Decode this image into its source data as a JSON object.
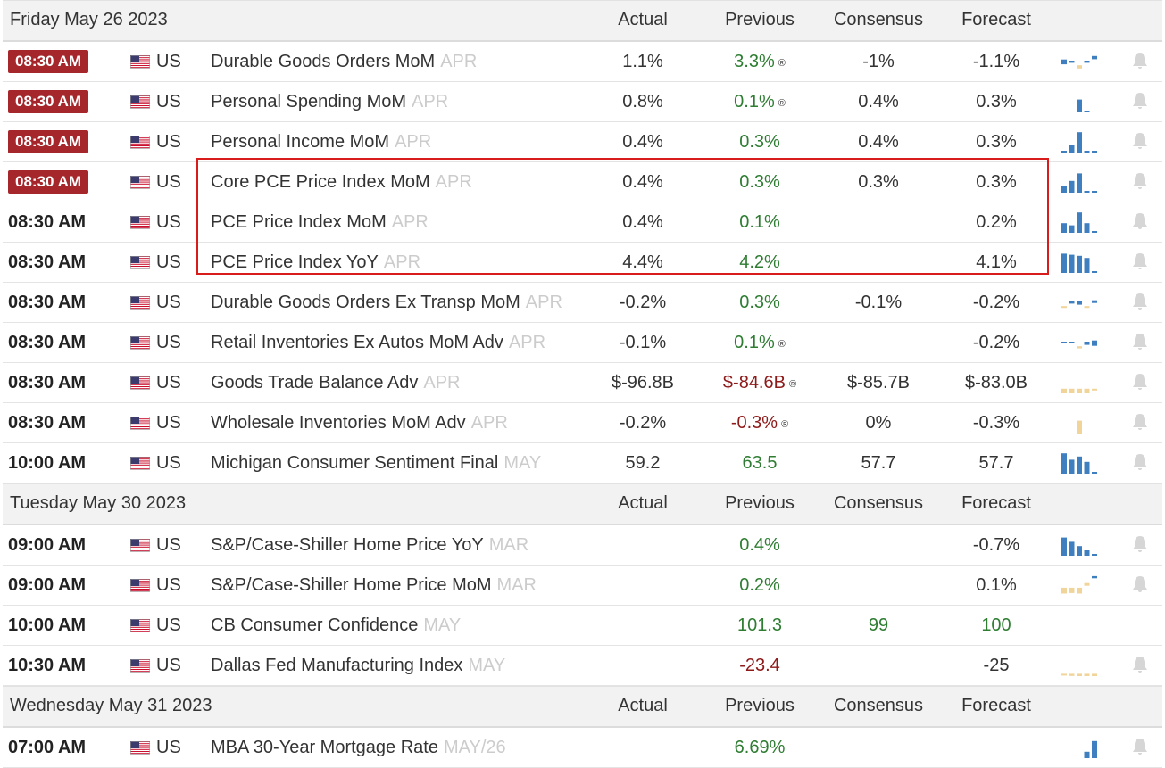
{
  "colors": {
    "highlight": "#a5262b",
    "positive": "#2e7d32",
    "negative": "#8e1a1a",
    "spark_blue": "#3f7fbf",
    "spark_tan": "#f1d49a",
    "box": "#d81b1b"
  },
  "columns": {
    "actual": "Actual",
    "previous": "Previous",
    "consensus": "Consensus",
    "forecast": "Forecast"
  },
  "groups": [
    {
      "date": "Friday May 26 2023",
      "rows": [
        {
          "time": "08:30 AM",
          "hi": true,
          "country": "US",
          "event": "Durable Goods Orders MoM",
          "period": "APR",
          "actual": "1.1%",
          "previous": "3.3%",
          "prev_color": "g",
          "revised": true,
          "consensus": "-1%",
          "forecast": "-1.1%",
          "spark": [
            {
              "h": 0.45,
              "c": "b",
              "o": 0.55
            },
            {
              "h": 0.2,
              "c": "b",
              "o": 0.5
            },
            {
              "h": 0.3,
              "c": "t",
              "o": 0.3
            },
            {
              "h": 0.2,
              "c": "b",
              "o": 0.5
            },
            {
              "h": 0.3,
              "c": "b",
              "o": 0.7
            }
          ],
          "bell": true
        },
        {
          "time": "08:30 AM",
          "hi": true,
          "country": "US",
          "event": "Personal Spending MoM",
          "period": "APR",
          "actual": "0.8%",
          "previous": "0.1%",
          "prev_color": "g",
          "revised": true,
          "consensus": "0.4%",
          "forecast": "0.3%",
          "spark": [
            {
              "h": 0,
              "c": "b",
              "o": 0
            },
            {
              "h": 0,
              "c": "b",
              "o": 0
            },
            {
              "h": 0.6,
              "c": "b",
              "o": 0
            },
            {
              "h": 0.08,
              "c": "b",
              "o": 0
            },
            {
              "h": 0,
              "c": "b",
              "o": 0
            }
          ],
          "bell": true
        },
        {
          "time": "08:30 AM",
          "hi": true,
          "country": "US",
          "event": "Personal Income MoM",
          "period": "APR",
          "actual": "0.4%",
          "previous": "0.3%",
          "prev_color": "g",
          "revised": false,
          "consensus": "0.4%",
          "forecast": "0.3%",
          "spark": [
            {
              "h": 0.08,
              "c": "b",
              "o": 0
            },
            {
              "h": 0.35,
              "c": "b",
              "o": 0
            },
            {
              "h": 0.95,
              "c": "b",
              "o": 0
            },
            {
              "h": 0.08,
              "c": "b",
              "o": 0
            },
            {
              "h": 0.08,
              "c": "b",
              "o": 0
            }
          ],
          "bell": true
        },
        {
          "time": "08:30 AM",
          "hi": true,
          "country": "US",
          "event": "Core PCE Price Index MoM",
          "period": "APR",
          "actual": "0.4%",
          "previous": "0.3%",
          "prev_color": "g",
          "revised": false,
          "consensus": "0.3%",
          "forecast": "0.3%",
          "spark": [
            {
              "h": 0.3,
              "c": "b",
              "o": 0
            },
            {
              "h": 0.55,
              "c": "b",
              "o": 0
            },
            {
              "h": 0.9,
              "c": "b",
              "o": 0
            },
            {
              "h": 0.08,
              "c": "b",
              "o": 0
            },
            {
              "h": 0.08,
              "c": "b",
              "o": 0
            }
          ],
          "bell": true
        },
        {
          "time": "08:30 AM",
          "hi": false,
          "country": "US",
          "event": "PCE Price Index MoM",
          "period": "APR",
          "actual": "0.4%",
          "previous": "0.1%",
          "prev_color": "g",
          "revised": false,
          "consensus": "",
          "forecast": "0.2%",
          "spark": [
            {
              "h": 0.45,
              "c": "b",
              "o": 0
            },
            {
              "h": 0.35,
              "c": "b",
              "o": 0
            },
            {
              "h": 0.95,
              "c": "b",
              "o": 0
            },
            {
              "h": 0.45,
              "c": "b",
              "o": 0
            },
            {
              "h": 0.08,
              "c": "b",
              "o": 0
            }
          ],
          "bell": true
        },
        {
          "time": "08:30 AM",
          "hi": false,
          "country": "US",
          "event": "PCE Price Index YoY",
          "period": "APR",
          "actual": "4.4%",
          "previous": "4.2%",
          "prev_color": "g",
          "revised": false,
          "consensus": "",
          "forecast": "4.1%",
          "spark": [
            {
              "h": 0.9,
              "c": "b",
              "o": 0
            },
            {
              "h": 0.85,
              "c": "b",
              "o": 0
            },
            {
              "h": 0.8,
              "c": "b",
              "o": 0
            },
            {
              "h": 0.7,
              "c": "b",
              "o": 0
            },
            {
              "h": 0.08,
              "c": "b",
              "o": 0
            }
          ],
          "bell": true
        },
        {
          "time": "08:30 AM",
          "hi": false,
          "country": "US",
          "event": "Durable Goods Orders Ex Transp MoM",
          "period": "APR",
          "actual": "-0.2%",
          "previous": "0.3%",
          "prev_color": "g",
          "revised": false,
          "consensus": "-0.1%",
          "forecast": "-0.2%",
          "spark": [
            {
              "h": 0.15,
              "c": "t",
              "o": 0.3
            },
            {
              "h": 0.2,
              "c": "b",
              "o": 0.5
            },
            {
              "h": 0.3,
              "c": "b",
              "o": 0.5
            },
            {
              "h": 0.15,
              "c": "t",
              "o": 0.3
            },
            {
              "h": 0.25,
              "c": "b",
              "o": 0.55
            }
          ],
          "bell": true
        },
        {
          "time": "08:30 AM",
          "hi": false,
          "country": "US",
          "event": "Retail Inventories Ex Autos MoM Adv",
          "period": "APR",
          "actual": "-0.1%",
          "previous": "0.1%",
          "prev_color": "g",
          "revised": true,
          "consensus": "",
          "forecast": "-0.2%",
          "spark": [
            {
              "h": 0.1,
              "c": "b",
              "o": 0.5
            },
            {
              "h": 0.1,
              "c": "b",
              "o": 0.5
            },
            {
              "h": 0.2,
              "c": "t",
              "o": 0.3
            },
            {
              "h": 0.3,
              "c": "b",
              "o": 0.5
            },
            {
              "h": 0.5,
              "c": "b",
              "o": 0.55
            }
          ],
          "bell": true
        },
        {
          "time": "08:30 AM",
          "hi": false,
          "country": "US",
          "event": "Goods Trade Balance Adv",
          "period": "APR",
          "actual": "$-96.8B",
          "previous": "$-84.6B",
          "prev_color": "r",
          "revised": true,
          "consensus": "$-85.7B",
          "forecast": "$-83.0B",
          "spark": [
            {
              "h": 0.8,
              "c": "t",
              "o": 0.2
            },
            {
              "h": 0.7,
              "c": "t",
              "o": 0.2
            },
            {
              "h": 0.9,
              "c": "t",
              "o": 0.2
            },
            {
              "h": 0.8,
              "c": "t",
              "o": 0.2
            },
            {
              "h": 0.1,
              "c": "t",
              "o": 0.2
            }
          ],
          "bell": true
        },
        {
          "time": "08:30 AM",
          "hi": false,
          "country": "US",
          "event": "Wholesale Inventories MoM Adv",
          "period": "APR",
          "actual": "-0.2%",
          "previous": "-0.3%",
          "prev_color": "r",
          "revised": true,
          "consensus": "0%",
          "forecast": "-0.3%",
          "spark": [
            {
              "h": 0,
              "c": "t",
              "o": 0
            },
            {
              "h": 0,
              "c": "t",
              "o": 0
            },
            {
              "h": 0.6,
              "c": "t",
              "o": 0
            },
            {
              "h": 0,
              "c": "t",
              "o": 0
            },
            {
              "h": 0,
              "c": "t",
              "o": 0
            }
          ],
          "bell": true
        },
        {
          "time": "10:00 AM",
          "hi": false,
          "country": "US",
          "event": "Michigan Consumer Sentiment Final",
          "period": "MAY",
          "actual": "59.2",
          "previous": "63.5",
          "prev_color": "g",
          "revised": false,
          "consensus": "57.7",
          "forecast": "57.7",
          "spark": [
            {
              "h": 0.95,
              "c": "b",
              "o": 0
            },
            {
              "h": 0.65,
              "c": "b",
              "o": 0
            },
            {
              "h": 0.8,
              "c": "b",
              "o": 0
            },
            {
              "h": 0.55,
              "c": "b",
              "o": 0
            },
            {
              "h": 0.08,
              "c": "b",
              "o": 0
            }
          ],
          "bell": true
        }
      ]
    },
    {
      "date": "Tuesday May 30 2023",
      "rows": [
        {
          "time": "09:00 AM",
          "hi": false,
          "country": "US",
          "event": "S&P/Case-Shiller Home Price YoY",
          "period": "MAR",
          "actual": "",
          "previous": "0.4%",
          "prev_color": "g",
          "revised": false,
          "consensus": "",
          "forecast": "-0.7%",
          "spark": [
            {
              "h": 0.85,
              "c": "b",
              "o": 0
            },
            {
              "h": 0.65,
              "c": "b",
              "o": 0
            },
            {
              "h": 0.45,
              "c": "b",
              "o": 0
            },
            {
              "h": 0.25,
              "c": "b",
              "o": 0
            },
            {
              "h": 0.08,
              "c": "b",
              "o": 0
            }
          ],
          "bell": true
        },
        {
          "time": "09:00 AM",
          "hi": false,
          "country": "US",
          "event": "S&P/Case-Shiller Home Price MoM",
          "period": "MAR",
          "actual": "",
          "previous": "0.2%",
          "prev_color": "g",
          "revised": false,
          "consensus": "",
          "forecast": "0.1%",
          "spark": [
            {
              "h": 0.55,
              "c": "t",
              "o": 0.35
            },
            {
              "h": 0.5,
              "c": "t",
              "o": 0.35
            },
            {
              "h": 0.55,
              "c": "t",
              "o": 0.35
            },
            {
              "h": 0.25,
              "c": "t",
              "o": 0.55
            },
            {
              "h": 0.2,
              "c": "b",
              "o": 0.85
            }
          ],
          "bell": true
        },
        {
          "time": "10:00 AM",
          "hi": false,
          "country": "US",
          "event": "CB Consumer Confidence",
          "period": "MAY",
          "actual": "",
          "previous": "101.3",
          "prev_color": "g",
          "revised": false,
          "consensus": "99",
          "forecast": "100",
          "fcst_color": "g",
          "cons_color": "g",
          "spark": [],
          "bell": false
        },
        {
          "time": "10:30 AM",
          "hi": false,
          "country": "US",
          "event": "Dallas Fed Manufacturing Index",
          "period": "MAY",
          "actual": "",
          "previous": "-23.4",
          "prev_color": "r",
          "revised": false,
          "consensus": "",
          "forecast": "-25",
          "spark": [
            {
              "h": 0.08,
              "c": "t",
              "o": 0.1
            },
            {
              "h": 0.2,
              "c": "t",
              "o": 0.1
            },
            {
              "h": 0.5,
              "c": "t",
              "o": 0.1
            },
            {
              "h": 0.7,
              "c": "t",
              "o": 0.1
            },
            {
              "h": 0.95,
              "c": "t",
              "o": 0.1
            }
          ],
          "bell": true
        }
      ]
    },
    {
      "date": "Wednesday May 31 2023",
      "rows": [
        {
          "time": "07:00 AM",
          "hi": false,
          "country": "US",
          "event": "MBA 30-Year Mortgage Rate",
          "period": "MAY/26",
          "actual": "",
          "previous": "6.69%",
          "prev_color": "g",
          "revised": false,
          "consensus": "",
          "forecast": "",
          "spark": [
            {
              "h": 0,
              "c": "b",
              "o": 0
            },
            {
              "h": 0,
              "c": "b",
              "o": 0
            },
            {
              "h": 0,
              "c": "b",
              "o": 0
            },
            {
              "h": 0.3,
              "c": "b",
              "o": 0
            },
            {
              "h": 0.8,
              "c": "b",
              "o": 0
            }
          ],
          "bell": true
        }
      ]
    }
  ]
}
